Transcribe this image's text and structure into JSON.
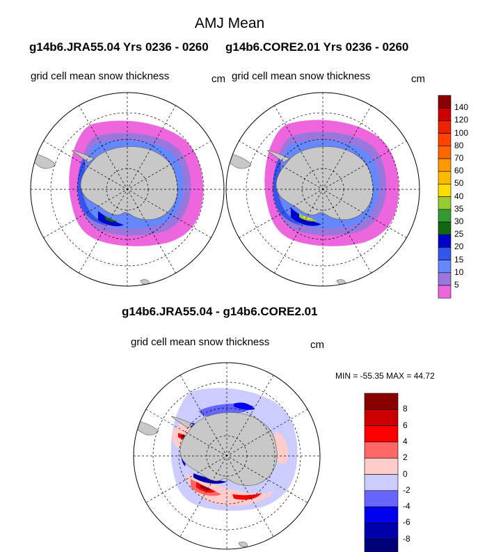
{
  "main_title": "AMJ Mean",
  "left_panel": {
    "header": "g14b6.JRA55.04  Yrs 0236 - 0260",
    "variable": "grid cell mean snow thickness",
    "units": "cm"
  },
  "right_panel": {
    "header": "g14b6.CORE2.01  Yrs 0236 - 0260",
    "variable": "grid cell mean snow thickness",
    "units": "cm"
  },
  "difference_panel": {
    "header": "g14b6.JRA55.04 - g14b6.CORE2.01",
    "variable": "grid cell mean snow thickness",
    "units": "cm",
    "stats": "MIN = -55.35 MAX =  44.72"
  },
  "mean_colorbar": {
    "labels": [
      "140",
      "120",
      "100",
      "80",
      "70",
      "60",
      "50",
      "40",
      "35",
      "30",
      "25",
      "20",
      "15",
      "10",
      "5"
    ],
    "colors": [
      "#8b0000",
      "#cc0000",
      "#ee2200",
      "#ff4400",
      "#ff6600",
      "#ff9900",
      "#ffbb00",
      "#ffdd00",
      "#99cc33",
      "#339933",
      "#116611",
      "#0000cc",
      "#3355ee",
      "#6688ff",
      "#9977dd",
      "#ee66dd"
    ]
  },
  "diff_colorbar": {
    "labels": [
      "8",
      "6",
      "4",
      "2",
      "0",
      "-2",
      "-4",
      "-6",
      "-8"
    ],
    "colors": [
      "#880000",
      "#cc0000",
      "#ff0000",
      "#ff6666",
      "#ffcccc",
      "#ccccff",
      "#6666ff",
      "#0000ee",
      "#0000aa",
      "#000077"
    ]
  },
  "colors": {
    "land": "#c8c8c8",
    "ocean": "#ffffff",
    "grid": "#000000"
  }
}
